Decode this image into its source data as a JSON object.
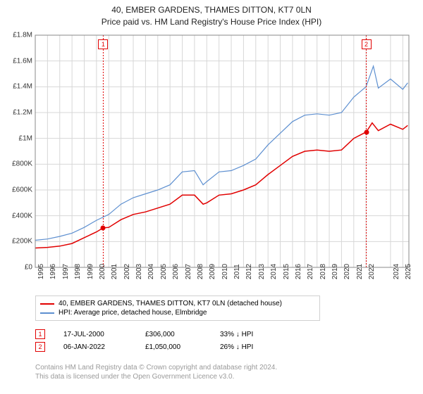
{
  "title": {
    "line1": "40, EMBER GARDENS, THAMES DITTON, KT7 0LN",
    "line2": "Price paid vs. HM Land Registry's House Price Index (HPI)"
  },
  "chart": {
    "type": "line",
    "x_start_year": 1995,
    "x_end_year": 2025.5,
    "y_min": 0,
    "y_max": 1800000,
    "y_tick_step": 200000,
    "y_tick_labels": [
      "£0",
      "£200K",
      "£400K",
      "£600K",
      "£800K",
      "£1M",
      "£1.2M",
      "£1.4M",
      "£1.6M",
      "£1.8M"
    ],
    "x_tick_years": [
      1995,
      1996,
      1997,
      1998,
      1999,
      2000,
      2001,
      2002,
      2003,
      2004,
      2005,
      2006,
      2007,
      2008,
      2009,
      2010,
      2011,
      2012,
      2013,
      2014,
      2015,
      2016,
      2017,
      2018,
      2019,
      2020,
      2021,
      2022,
      2024,
      2025
    ],
    "grid_color": "#d7d7d7",
    "background_color": "#ffffff",
    "series": [
      {
        "name": "subject",
        "label": "40, EMBER GARDENS, THAMES DITTON, KT7 0LN (detached house)",
        "color": "#e10000",
        "width": 1.5,
        "values": [
          [
            1995,
            150000
          ],
          [
            1996,
            155000
          ],
          [
            1997,
            165000
          ],
          [
            1998,
            185000
          ],
          [
            1999,
            230000
          ],
          [
            2000,
            275000
          ],
          [
            2000.55,
            306000
          ],
          [
            2001,
            310000
          ],
          [
            2002,
            370000
          ],
          [
            2003,
            410000
          ],
          [
            2004,
            430000
          ],
          [
            2005,
            460000
          ],
          [
            2006,
            490000
          ],
          [
            2007,
            560000
          ],
          [
            2008,
            560000
          ],
          [
            2008.7,
            490000
          ],
          [
            2009,
            500000
          ],
          [
            2010,
            560000
          ],
          [
            2011,
            570000
          ],
          [
            2012,
            600000
          ],
          [
            2013,
            640000
          ],
          [
            2014,
            720000
          ],
          [
            2015,
            790000
          ],
          [
            2016,
            860000
          ],
          [
            2017,
            900000
          ],
          [
            2018,
            910000
          ],
          [
            2019,
            900000
          ],
          [
            2020,
            910000
          ],
          [
            2021,
            1000000
          ],
          [
            2022.02,
            1050000
          ],
          [
            2022.5,
            1120000
          ],
          [
            2023,
            1060000
          ],
          [
            2024,
            1110000
          ],
          [
            2025,
            1070000
          ],
          [
            2025.4,
            1100000
          ]
        ]
      },
      {
        "name": "hpi",
        "label": "HPI: Average price, detached house, Elmbridge",
        "color": "#5d8fd0",
        "width": 1.2,
        "values": [
          [
            1995,
            210000
          ],
          [
            1996,
            220000
          ],
          [
            1997,
            240000
          ],
          [
            1998,
            265000
          ],
          [
            1999,
            310000
          ],
          [
            2000,
            365000
          ],
          [
            2001,
            410000
          ],
          [
            2002,
            490000
          ],
          [
            2003,
            540000
          ],
          [
            2004,
            570000
          ],
          [
            2005,
            600000
          ],
          [
            2006,
            640000
          ],
          [
            2007,
            740000
          ],
          [
            2008,
            750000
          ],
          [
            2008.7,
            640000
          ],
          [
            2009,
            665000
          ],
          [
            2010,
            740000
          ],
          [
            2011,
            750000
          ],
          [
            2012,
            790000
          ],
          [
            2013,
            840000
          ],
          [
            2014,
            950000
          ],
          [
            2015,
            1040000
          ],
          [
            2016,
            1130000
          ],
          [
            2017,
            1180000
          ],
          [
            2018,
            1190000
          ],
          [
            2019,
            1180000
          ],
          [
            2020,
            1200000
          ],
          [
            2021,
            1320000
          ],
          [
            2022,
            1400000
          ],
          [
            2022.6,
            1560000
          ],
          [
            2023,
            1390000
          ],
          [
            2024,
            1460000
          ],
          [
            2025,
            1380000
          ],
          [
            2025.4,
            1430000
          ]
        ]
      }
    ],
    "sale_markers": [
      {
        "idx": 1,
        "year": 2000.55,
        "value": 306000,
        "color": "#e10000"
      },
      {
        "idx": 2,
        "year": 2022.02,
        "value": 1050000,
        "color": "#e10000"
      }
    ]
  },
  "legend": {
    "items": [
      {
        "color": "#e10000",
        "label": "40, EMBER GARDENS, THAMES DITTON, KT7 0LN (detached house)"
      },
      {
        "color": "#5d8fd0",
        "label": "HPI: Average price, detached house, Elmbridge"
      }
    ]
  },
  "sales": [
    {
      "idx": "1",
      "color": "#e10000",
      "date": "17-JUL-2000",
      "price": "£306,000",
      "diff": "33%  ↓  HPI"
    },
    {
      "idx": "2",
      "color": "#e10000",
      "date": "06-JAN-2022",
      "price": "£1,050,000",
      "diff": "26%  ↓  HPI"
    }
  ],
  "footnote": {
    "line1": "Contains HM Land Registry data © Crown copyright and database right 2024.",
    "line2": "This data is licensed under the Open Government Licence v3.0."
  }
}
